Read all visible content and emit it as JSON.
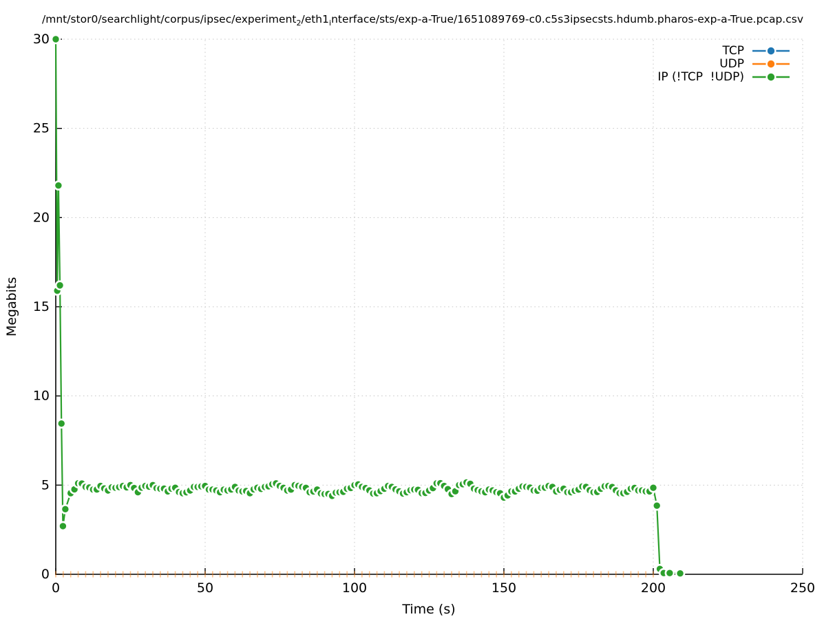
{
  "title": {
    "part1": "/mnt/stor0/searchlight/corpus/ipsec/experiment",
    "sub1": "2",
    "part2": "/eth1",
    "sub2": "i",
    "part3": "nterface/sts/exp-a-True/1651089769-c0.c5s3ipsecsts.hdumb.pharos-exp-a-True.pcap.csv"
  },
  "axes": {
    "xlabel": "Time (s)",
    "ylabel": "Megabits",
    "x_ticks": [
      0,
      50,
      100,
      150,
      200,
      250
    ],
    "y_ticks": [
      0,
      5,
      10,
      15,
      20,
      25,
      30
    ],
    "xlim": [
      0,
      250
    ],
    "ylim": [
      0,
      30
    ]
  },
  "legend": [
    {
      "label": "TCP",
      "color": "#1f77b4"
    },
    {
      "label": "UDP",
      "color": "#ff7f0e"
    },
    {
      "label": "IP (!TCP  !UDP)",
      "color": "#2ca02c"
    }
  ],
  "chart_data": {
    "type": "line",
    "title": "/mnt/stor0/searchlight/corpus/ipsec/experiment₂/eth1ᵢnterface/sts/exp-a-True/1651089769-c0.c5s3ipsecsts.hdumb.pharos-exp-a-True.pcap.csv",
    "xlabel": "Time (s)",
    "ylabel": "Megabits",
    "xlim": [
      0,
      250
    ],
    "ylim": [
      0,
      30
    ],
    "grid": "dotted major gridlines",
    "legend_position": "top-right inside plot",
    "marker_style": "filled circle with background halo over dashed/solid line (overlaps create crescents)",
    "series": [
      {
        "name": "TCP",
        "color": "#1f77b4",
        "style": "line+points",
        "visible_points": false,
        "note": "no data visible above 0; hidden beneath UDP markers on the x-axis"
      },
      {
        "name": "UDP",
        "color": "#ff7f0e",
        "style": "line+points (rendered as faint vertical tick marks straddling y=0)",
        "constant_value": 0,
        "t_start": 0,
        "t_end": 200,
        "sample_interval_s": 2.5
      },
      {
        "name": "IP (!TCP  !UDP)",
        "color": "#2ca02c",
        "style": "line+points",
        "points": [
          [
            0,
            30
          ],
          [
            0.5,
            15.9
          ],
          [
            0.9,
            21.8
          ],
          [
            1.4,
            16.2
          ],
          [
            1.9,
            8.45
          ],
          [
            2.4,
            2.7
          ],
          [
            3.2,
            3.65
          ],
          [
            5,
            4.55
          ],
          [
            7.5,
            5.1
          ],
          [
            10,
            4.9
          ],
          [
            12.5,
            4.75
          ],
          [
            15,
            4.95
          ],
          [
            17.5,
            4.7
          ],
          [
            20,
            4.85
          ],
          [
            22.5,
            4.95
          ],
          [
            25,
            5.0
          ],
          [
            27.5,
            4.6
          ],
          [
            30,
            4.95
          ],
          [
            32.5,
            5.0
          ],
          [
            35,
            4.8
          ],
          [
            37.5,
            4.65
          ],
          [
            40,
            4.85
          ],
          [
            42.5,
            4.55
          ],
          [
            45,
            4.7
          ],
          [
            47.5,
            4.9
          ],
          [
            50,
            4.95
          ],
          [
            52.5,
            4.75
          ],
          [
            55,
            4.6
          ],
          [
            57.5,
            4.7
          ],
          [
            60,
            4.9
          ],
          [
            62.5,
            4.65
          ],
          [
            65,
            4.55
          ],
          [
            67.5,
            4.85
          ],
          [
            70,
            4.9
          ],
          [
            72.5,
            5.05
          ],
          [
            75,
            4.95
          ],
          [
            77.5,
            4.7
          ],
          [
            80,
            5.0
          ],
          [
            82.5,
            4.9
          ],
          [
            85,
            4.6
          ],
          [
            87.5,
            4.75
          ],
          [
            90,
            4.5
          ],
          [
            92.5,
            4.4
          ],
          [
            95,
            4.6
          ],
          [
            97.5,
            4.8
          ],
          [
            100,
            5.0
          ],
          [
            102.5,
            4.9
          ],
          [
            105,
            4.7
          ],
          [
            107.5,
            4.55
          ],
          [
            110,
            4.8
          ],
          [
            112.5,
            4.9
          ],
          [
            115,
            4.65
          ],
          [
            117.5,
            4.6
          ],
          [
            120,
            4.75
          ],
          [
            122.5,
            4.55
          ],
          [
            125,
            4.7
          ],
          [
            127.5,
            5.1
          ],
          [
            130,
            4.95
          ],
          [
            132.5,
            4.5
          ],
          [
            135,
            5.0
          ],
          [
            137.5,
            5.15
          ],
          [
            140,
            4.8
          ],
          [
            142.5,
            4.65
          ],
          [
            145,
            4.75
          ],
          [
            147.5,
            4.6
          ],
          [
            150,
            4.3
          ],
          [
            152.5,
            4.65
          ],
          [
            155,
            4.8
          ],
          [
            157.5,
            4.9
          ],
          [
            160,
            4.7
          ],
          [
            162.5,
            4.85
          ],
          [
            165,
            4.95
          ],
          [
            167.5,
            4.65
          ],
          [
            170,
            4.8
          ],
          [
            172.5,
            4.6
          ],
          [
            175,
            4.75
          ],
          [
            177.5,
            4.9
          ],
          [
            180,
            4.6
          ],
          [
            182.5,
            4.8
          ],
          [
            185,
            4.95
          ],
          [
            187.5,
            4.7
          ],
          [
            190,
            4.55
          ],
          [
            192.5,
            4.8
          ],
          [
            195,
            4.7
          ],
          [
            197.5,
            4.65
          ],
          [
            200,
            4.85
          ],
          [
            201.2,
            3.85
          ],
          [
            202.2,
            0.3
          ],
          [
            203.5,
            0.07
          ],
          [
            205.5,
            0.07
          ],
          [
            209,
            0.05
          ]
        ]
      }
    ]
  }
}
